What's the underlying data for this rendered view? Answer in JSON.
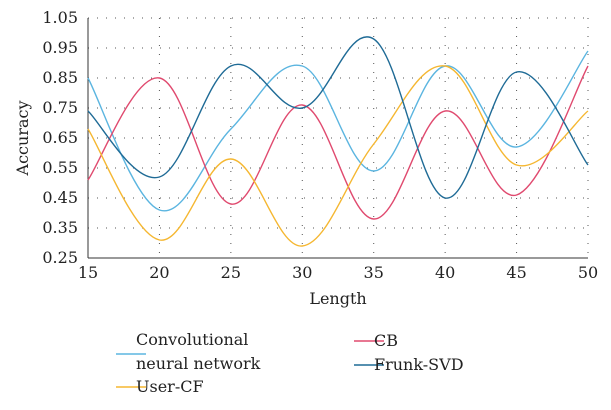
{
  "chart_data": {
    "type": "line",
    "xlabel": "Length",
    "ylabel": "Accuracy",
    "xlim": [
      15,
      50
    ],
    "ylim": [
      0.25,
      1.05
    ],
    "x_ticks": [
      15,
      20,
      25,
      30,
      35,
      40,
      45,
      50
    ],
    "y_ticks": [
      0.25,
      0.35,
      0.45,
      0.55,
      0.65,
      0.75,
      0.85,
      0.95,
      1.05
    ],
    "x_tick_labels": [
      "15",
      "20",
      "25",
      "30",
      "35",
      "40",
      "45",
      "50"
    ],
    "y_tick_labels": [
      "0.25",
      "0.35",
      "0.45",
      "0.55",
      "0.65",
      "0.75",
      "0.85",
      "0.95",
      "1.05"
    ],
    "grid": "dotted",
    "legend_position": "bottom",
    "x": [
      15,
      20,
      25,
      30,
      35,
      40,
      45,
      50
    ],
    "series": [
      {
        "name": "Convolutional neural network",
        "legend_lines": [
          "Convolutional",
          "neural network"
        ],
        "color": "#5bb5e0",
        "values": [
          0.85,
          0.41,
          0.68,
          0.89,
          0.54,
          0.89,
          0.62,
          0.94
        ]
      },
      {
        "name": "CB",
        "legend_lines": [
          "CB"
        ],
        "color": "#e04a6f",
        "values": [
          0.51,
          0.85,
          0.43,
          0.76,
          0.38,
          0.74,
          0.46,
          0.89
        ]
      },
      {
        "name": "User-CF",
        "legend_lines": [
          "User-CF"
        ],
        "color": "#f5b731",
        "values": [
          0.68,
          0.31,
          0.58,
          0.29,
          0.63,
          0.89,
          0.56,
          0.74
        ]
      },
      {
        "name": "Frunk-SVD",
        "legend_lines": [
          "Frunk-SVD"
        ],
        "color": "#1f6b96",
        "values": [
          0.74,
          0.52,
          0.89,
          0.75,
          0.98,
          0.45,
          0.87,
          0.56
        ]
      }
    ]
  }
}
